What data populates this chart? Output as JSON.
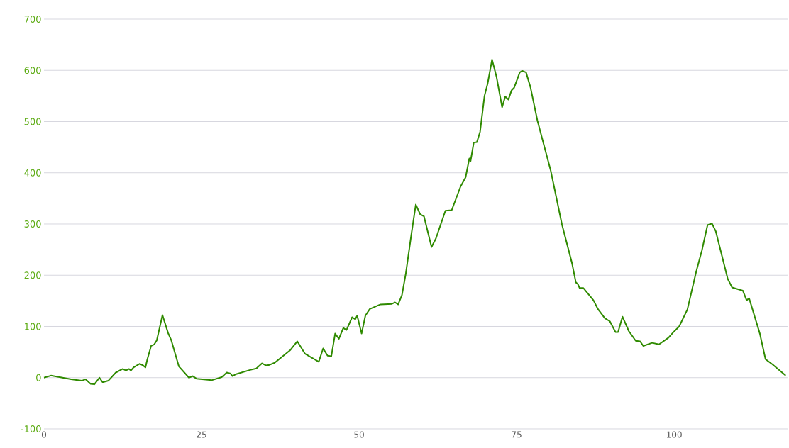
{
  "chart_data": {
    "type": "line",
    "xlim": [
      0,
      118
    ],
    "ylim": [
      -100,
      700
    ],
    "xticks": [
      0,
      25,
      50,
      75,
      100
    ],
    "yticks": [
      -100,
      0,
      100,
      200,
      300,
      400,
      500,
      600,
      700
    ],
    "grid": "y",
    "marker": "none",
    "line_style": "solid",
    "series": [
      {
        "color": "#2f8a00",
        "x": [
          0,
          1.1,
          4.3,
          6,
          6.6,
          7.4,
          8,
          8.8,
          9.3,
          10.2,
          11.4,
          12.5,
          13,
          13.5,
          13.8,
          14.2,
          15.2,
          15.7,
          16.1,
          16.4,
          17,
          17.5,
          17.9,
          18.8,
          19.7,
          20.2,
          21.4,
          23,
          23.6,
          24.2,
          26.6,
          28.2,
          29,
          29.6,
          29.9,
          30.5,
          32.7,
          33.7,
          34.6,
          35.2,
          35.8,
          36.6,
          39.1,
          40.2,
          41.4,
          43.6,
          44.3,
          45,
          45.6,
          46.2,
          46.8,
          47.5,
          48,
          48.9,
          49.4,
          49.7,
          50.4,
          51,
          51.7,
          53.4,
          55.2,
          55.7,
          56.2,
          56.8,
          57.4,
          58.3,
          59,
          59.7,
          60.3,
          61.5,
          62.2,
          63.7,
          64.7,
          66.1,
          66.9,
          67.5,
          67.7,
          68.2,
          68.7,
          69.2,
          69.9,
          70.4,
          71.1,
          71.8,
          72.7,
          73.2,
          73.7,
          74.2,
          74.6,
          75.5,
          75.9,
          76.5,
          77.2,
          78.3,
          80.4,
          82.2,
          83.8,
          84.4,
          84.7,
          85,
          85.6,
          87.2,
          87.9,
          89,
          89.8,
          90.7,
          91.1,
          91.8,
          92.8,
          93.9,
          94.6,
          95.1,
          96.5,
          97.6,
          99.1,
          99.9,
          100.8,
          102.1,
          103.5,
          104.4,
          105.3,
          106,
          106.6,
          108.5,
          109.2,
          110.9,
          111.5,
          111.9,
          113.6,
          114.5,
          115.6,
          117.7
        ],
        "values": [
          0,
          4,
          -3,
          -6,
          -3,
          -12,
          -13,
          0,
          -9,
          -6,
          10,
          17,
          14,
          17,
          14,
          20,
          27,
          24,
          20,
          36,
          62,
          65,
          73,
          122,
          87,
          73,
          22,
          0,
          3,
          -2,
          -5,
          1,
          10,
          8,
          3,
          7,
          15,
          18,
          28,
          24,
          25,
          29,
          54,
          71,
          47,
          31,
          57,
          43,
          42,
          86,
          76,
          97,
          93,
          118,
          114,
          121,
          86,
          121,
          134,
          143,
          144,
          147,
          143,
          161,
          202,
          280,
          338,
          319,
          315,
          255,
          272,
          326,
          327,
          373,
          391,
          428,
          423,
          459,
          460,
          480,
          550,
          574,
          621,
          588,
          528,
          549,
          543,
          561,
          566,
          596,
          599,
          596,
          567,
          502,
          405,
          299,
          223,
          186,
          183,
          175,
          175,
          151,
          134,
          116,
          110,
          89,
          89,
          119,
          91,
          72,
          71,
          62,
          68,
          65,
          78,
          89,
          100,
          133,
          207,
          248,
          298,
          301,
          286,
          193,
          176,
          170,
          151,
          155,
          86,
          36,
          26,
          4
        ]
      }
    ]
  }
}
